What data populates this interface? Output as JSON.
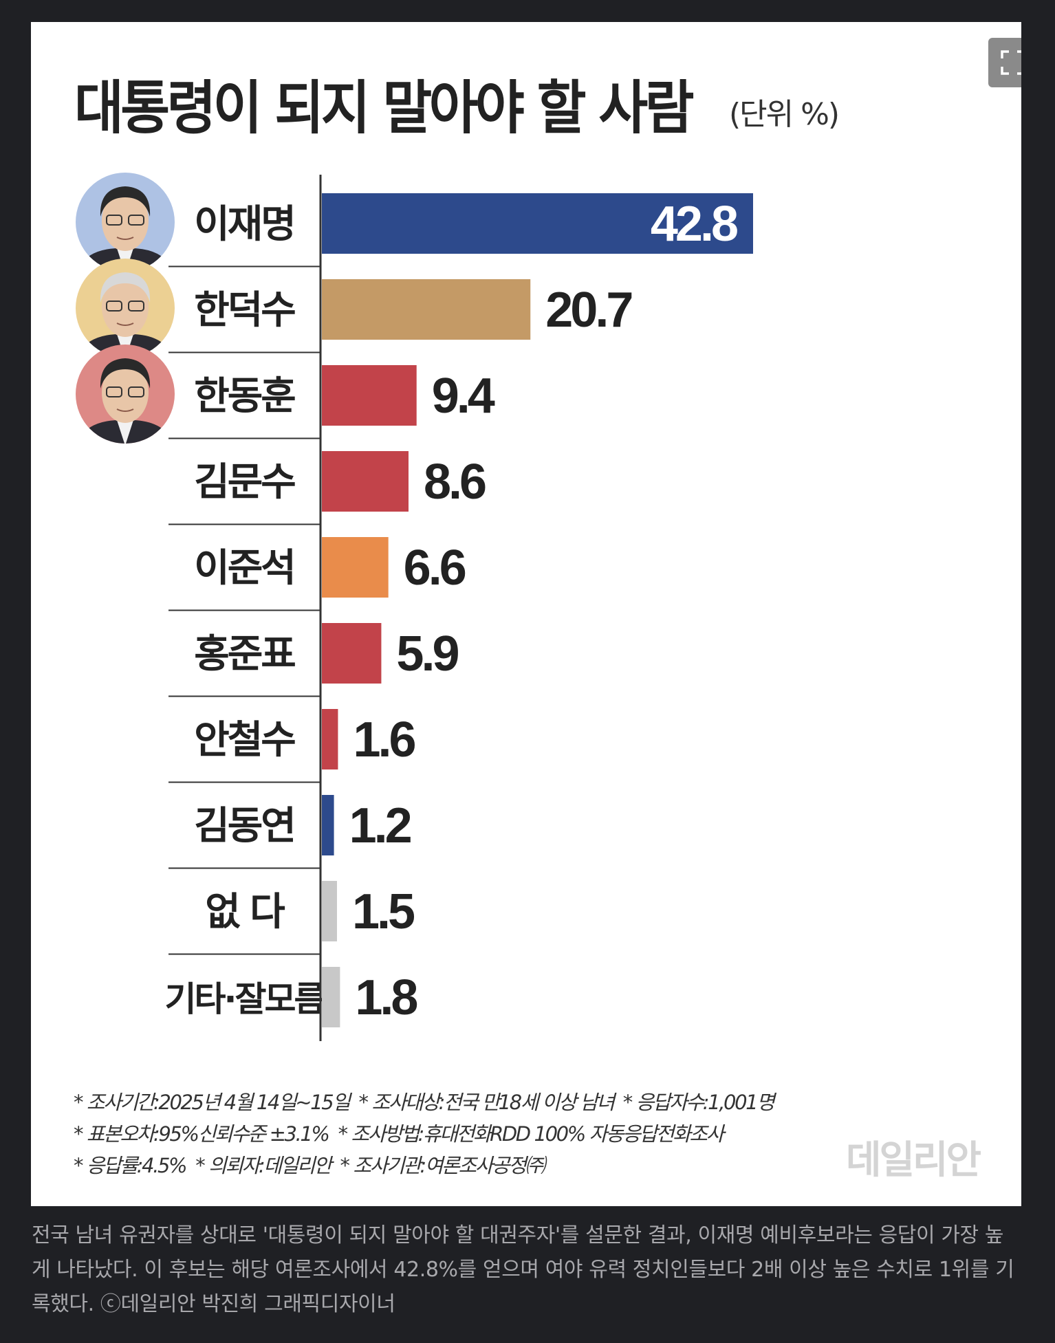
{
  "expand_icon": "fullscreen-icon",
  "chart_data": {
    "type": "bar",
    "orientation": "horizontal",
    "title": "대통령이 되지 말아야 할 사람",
    "unit": "(단위 %)",
    "categories": [
      "이재명",
      "한덕수",
      "한동훈",
      "김문수",
      "이준석",
      "홍준표",
      "안철수",
      "김동연",
      "없 다",
      "기타·잘모름"
    ],
    "values": [
      42.8,
      20.7,
      9.4,
      8.6,
      6.6,
      5.9,
      1.6,
      1.2,
      1.5,
      1.8
    ],
    "value_labels": [
      "42.8",
      "20.7",
      "9.4",
      "8.6",
      "6.6",
      "5.9",
      "1.6",
      "1.2",
      "1.5",
      "1.8"
    ],
    "colors": [
      "#2d4a8c",
      "#c49a66",
      "#c2434a",
      "#c2434a",
      "#e98c4b",
      "#c2434a",
      "#c2434a",
      "#2d4a8c",
      "#c8c8c8",
      "#c8c8c8"
    ],
    "portraits": [
      {
        "category": "이재명",
        "icon": "portrait-icon",
        "bg": "#aec2e4"
      },
      {
        "category": "한덕수",
        "icon": "portrait-icon",
        "bg": "#ecd093"
      },
      {
        "category": "한동훈",
        "icon": "portrait-icon",
        "bg": "#dd8986"
      }
    ],
    "xlim": [
      0,
      45
    ],
    "grid": false,
    "legend": "none"
  },
  "notes": [
    [
      "* 조사기간:2025년 4월 14일~15일",
      "* 조사대상:전국 만18세 이상 남녀",
      "* 응답자수:1,001명"
    ],
    [
      "* 표본오차:95%신뢰수준 ±3.1%",
      "* 조사방법:휴대전화RDD 100% 자동응답전화조사"
    ],
    [
      "* 응답률:4.5%",
      "* 의뢰자:데일리안",
      "* 조사기관:여론조사공정㈜"
    ]
  ],
  "watermark": "데일리안",
  "caption": "전국 남녀 유권자를 상대로 '대통령이 되지 말아야 할 대권주자'를 설문한 결과, 이재명 예비후보라는 응답이 가장 높게 나타났다. 이 후보는 해당 여론조사에서 42.8%를 얻으며 여야 유력 정치인들보다 2배 이상 높은 수치로 1위를 기록했다. ⓒ데일리안 박진희 그래픽디자이너"
}
